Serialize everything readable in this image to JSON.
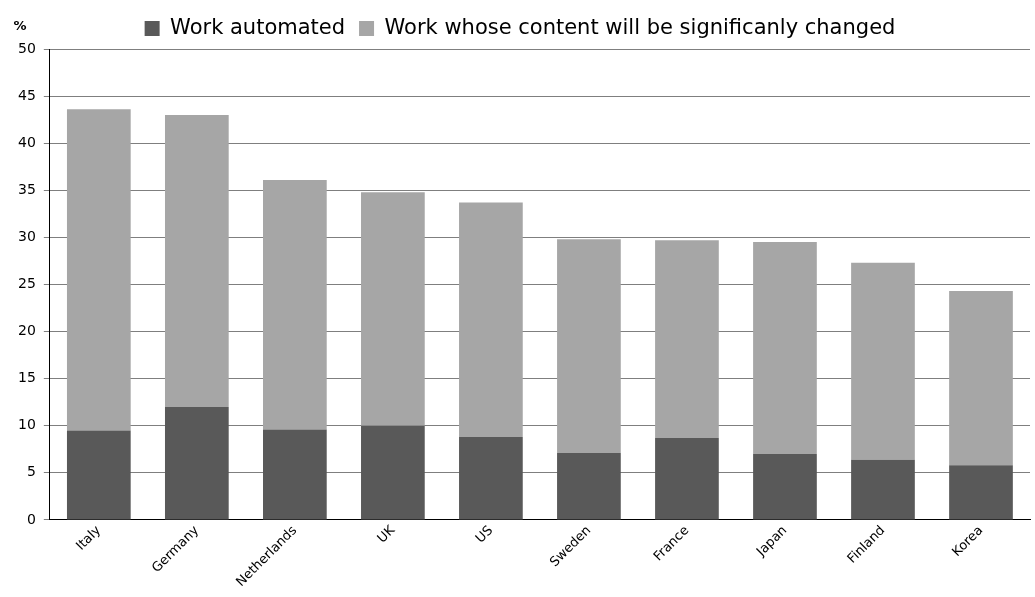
{
  "chart_data": {
    "type": "bar",
    "stacked": true,
    "ylabel": "%",
    "categories": [
      "Italy",
      "Germany",
      "Netherlands",
      "UK",
      "US",
      "Sweden",
      "France",
      "Japan",
      "Finland",
      "Korea"
    ],
    "series": [
      {
        "name": "Work automated",
        "color": "#595959",
        "values": [
          9.5,
          12.0,
          9.6,
          10.0,
          8.8,
          7.1,
          8.7,
          7.0,
          6.4,
          5.8
        ]
      },
      {
        "name": "Work whose content will be significanly changed",
        "color": "#a6a6a6",
        "values": [
          34.1,
          31.0,
          26.5,
          24.8,
          24.9,
          22.7,
          21.0,
          22.5,
          20.9,
          18.5
        ]
      }
    ],
    "ylim": [
      0,
      50
    ],
    "yticks": [
      0,
      5,
      10,
      15,
      20,
      25,
      30,
      35,
      40,
      45,
      50
    ],
    "grid": "y",
    "legend": "top"
  }
}
